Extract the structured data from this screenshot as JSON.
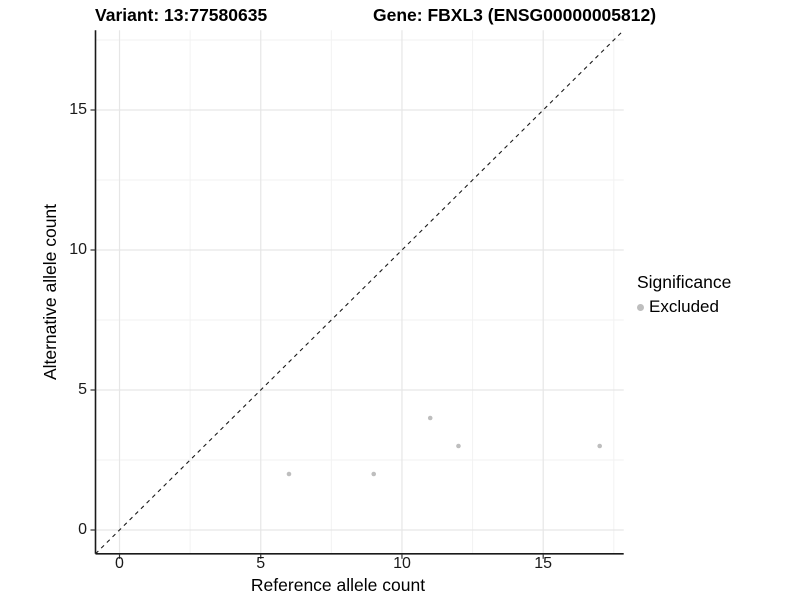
{
  "chart_data": {
    "type": "scatter",
    "titles": {
      "variant": "Variant: 13:77580635",
      "gene": "Gene: FBXL3 (ENSG00000005812)"
    },
    "xlabel": "Reference allele count",
    "ylabel": "Alternative allele count",
    "x_ticks": [
      0,
      5,
      10,
      15
    ],
    "y_ticks": [
      0,
      5,
      10,
      15
    ],
    "x_minor_ticks": [
      2.5,
      7.5,
      12.5,
      17.5
    ],
    "y_minor_ticks": [
      2.5,
      7.5,
      12.5,
      17.5
    ],
    "xlim": [
      -0.85,
      17.85
    ],
    "ylim": [
      -0.85,
      17.85
    ],
    "grid": "major+minor",
    "legend_position": "right",
    "series": [
      {
        "name": "Excluded",
        "color": "#bebebe",
        "points": [
          [
            6,
            2
          ],
          [
            9,
            2
          ],
          [
            11,
            4
          ],
          [
            12,
            3
          ],
          [
            17,
            3
          ]
        ]
      }
    ],
    "identity_line": {
      "equation": "y = x",
      "style": "dashed",
      "color": "#1a1a1a"
    },
    "legend": {
      "title": "Significance",
      "items": [
        {
          "label": "Excluded",
          "color": "#bebebe"
        }
      ]
    },
    "style_colors": {
      "grid_major": "#e6e6e6",
      "grid_minor": "#f2f2f2",
      "axis_line": "#1a1a1a",
      "tick_mark": "#333333",
      "point": "#bebebe"
    }
  }
}
